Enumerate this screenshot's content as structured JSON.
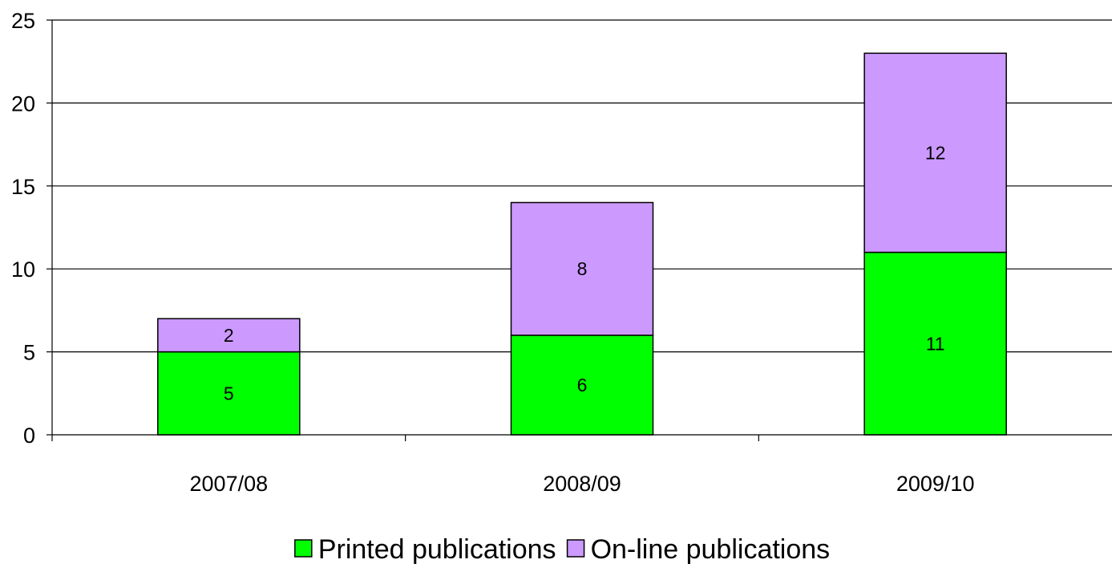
{
  "chart_data": {
    "type": "bar",
    "stacked": true,
    "categories": [
      "2007/08",
      "2008/09",
      "2009/10"
    ],
    "series": [
      {
        "name": "Printed publications",
        "values": [
          5,
          6,
          11
        ],
        "color": "#00ff00"
      },
      {
        "name": "On-line publications",
        "values": [
          2,
          8,
          12
        ],
        "color": "#cc99ff"
      }
    ],
    "title": "",
    "xlabel": "",
    "ylabel": "",
    "ylim": [
      0,
      25
    ],
    "yticks": [
      0,
      5,
      10,
      15,
      20,
      25
    ],
    "grid": true,
    "legend": "bottom"
  }
}
